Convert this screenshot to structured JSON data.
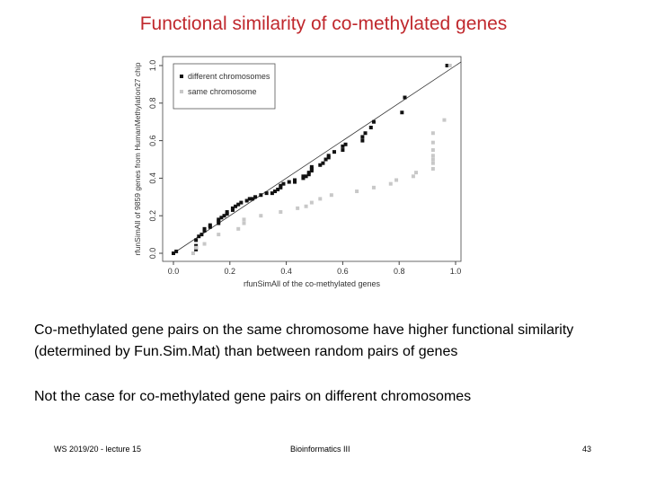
{
  "title": "Functional similarity of co-methylated genes",
  "paragraph1": "Co-methylated gene pairs on the same chromosome have higher functional similarity (determined by Fun.Sim.Mat) than between random pairs of genes",
  "paragraph2": "Not the case for co-methylated gene pairs on different chromosomes",
  "footer": {
    "left": "WS 2019/20 - lecture 15",
    "center": "Bioinformatics III",
    "page": "43"
  },
  "chart_data": {
    "type": "scatter",
    "title": "",
    "xlabel": "rfunSimAll of the co-methylated genes",
    "ylabel": "rfunSimAll of 9859 genes from HumanMethylation27 chip",
    "xlim": [
      0,
      1
    ],
    "ylim": [
      0,
      1
    ],
    "xticks": [
      "0.0",
      "0.2",
      "0.4",
      "0.6",
      "0.8",
      "1.0"
    ],
    "yticks": [
      "0.0",
      "0.2",
      "0.4",
      "0.6",
      "0.8",
      "1.0"
    ],
    "reference_line": "y = x",
    "legend_position": "top-left",
    "series": [
      {
        "name": "different chromosomes",
        "color": "#111111",
        "points": [
          [
            0,
            0
          ],
          [
            0.01,
            0.01
          ],
          [
            0.08,
            0.02
          ],
          [
            0.08,
            0.04
          ],
          [
            0.08,
            0.07
          ],
          [
            0.09,
            0.09
          ],
          [
            0.1,
            0.1
          ],
          [
            0.11,
            0.12
          ],
          [
            0.11,
            0.13
          ],
          [
            0.13,
            0.14
          ],
          [
            0.13,
            0.15
          ],
          [
            0.16,
            0.16
          ],
          [
            0.16,
            0.17
          ],
          [
            0.16,
            0.18
          ],
          [
            0.17,
            0.19
          ],
          [
            0.18,
            0.2
          ],
          [
            0.19,
            0.21
          ],
          [
            0.19,
            0.22
          ],
          [
            0.21,
            0.23
          ],
          [
            0.21,
            0.24
          ],
          [
            0.22,
            0.25
          ],
          [
            0.23,
            0.26
          ],
          [
            0.24,
            0.27
          ],
          [
            0.26,
            0.28
          ],
          [
            0.27,
            0.29
          ],
          [
            0.28,
            0.29
          ],
          [
            0.29,
            0.3
          ],
          [
            0.31,
            0.31
          ],
          [
            0.33,
            0.32
          ],
          [
            0.35,
            0.32
          ],
          [
            0.36,
            0.33
          ],
          [
            0.37,
            0.34
          ],
          [
            0.38,
            0.35
          ],
          [
            0.38,
            0.36
          ],
          [
            0.39,
            0.37
          ],
          [
            0.41,
            0.38
          ],
          [
            0.43,
            0.38
          ],
          [
            0.43,
            0.39
          ],
          [
            0.46,
            0.4
          ],
          [
            0.46,
            0.41
          ],
          [
            0.47,
            0.41
          ],
          [
            0.48,
            0.42
          ],
          [
            0.48,
            0.43
          ],
          [
            0.49,
            0.44
          ],
          [
            0.49,
            0.45
          ],
          [
            0.49,
            0.46
          ],
          [
            0.52,
            0.47
          ],
          [
            0.53,
            0.48
          ],
          [
            0.54,
            0.5
          ],
          [
            0.55,
            0.51
          ],
          [
            0.55,
            0.52
          ],
          [
            0.57,
            0.54
          ],
          [
            0.6,
            0.55
          ],
          [
            0.6,
            0.57
          ],
          [
            0.61,
            0.58
          ],
          [
            0.67,
            0.6
          ],
          [
            0.67,
            0.62
          ],
          [
            0.68,
            0.64
          ],
          [
            0.7,
            0.67
          ],
          [
            0.71,
            0.7
          ],
          [
            0.81,
            0.75
          ],
          [
            0.82,
            0.83
          ],
          [
            0.97,
            1.0
          ]
        ]
      },
      {
        "name": "same chromosome",
        "color": "#c8c8c8",
        "points": [
          [
            0.07,
            0
          ],
          [
            0.08,
            0.03
          ],
          [
            0.11,
            0.05
          ],
          [
            0.16,
            0.1
          ],
          [
            0.23,
            0.13
          ],
          [
            0.25,
            0.16
          ],
          [
            0.25,
            0.18
          ],
          [
            0.31,
            0.2
          ],
          [
            0.38,
            0.22
          ],
          [
            0.44,
            0.24
          ],
          [
            0.47,
            0.25
          ],
          [
            0.49,
            0.27
          ],
          [
            0.52,
            0.29
          ],
          [
            0.56,
            0.31
          ],
          [
            0.65,
            0.33
          ],
          [
            0.71,
            0.35
          ],
          [
            0.77,
            0.37
          ],
          [
            0.79,
            0.39
          ],
          [
            0.85,
            0.41
          ],
          [
            0.86,
            0.43
          ],
          [
            0.92,
            0.45
          ],
          [
            0.92,
            0.48
          ],
          [
            0.92,
            0.5
          ],
          [
            0.92,
            0.52
          ],
          [
            0.92,
            0.55
          ],
          [
            0.92,
            0.59
          ],
          [
            0.92,
            0.64
          ],
          [
            0.96,
            0.71
          ],
          [
            0.98,
            1.0
          ]
        ]
      }
    ]
  }
}
